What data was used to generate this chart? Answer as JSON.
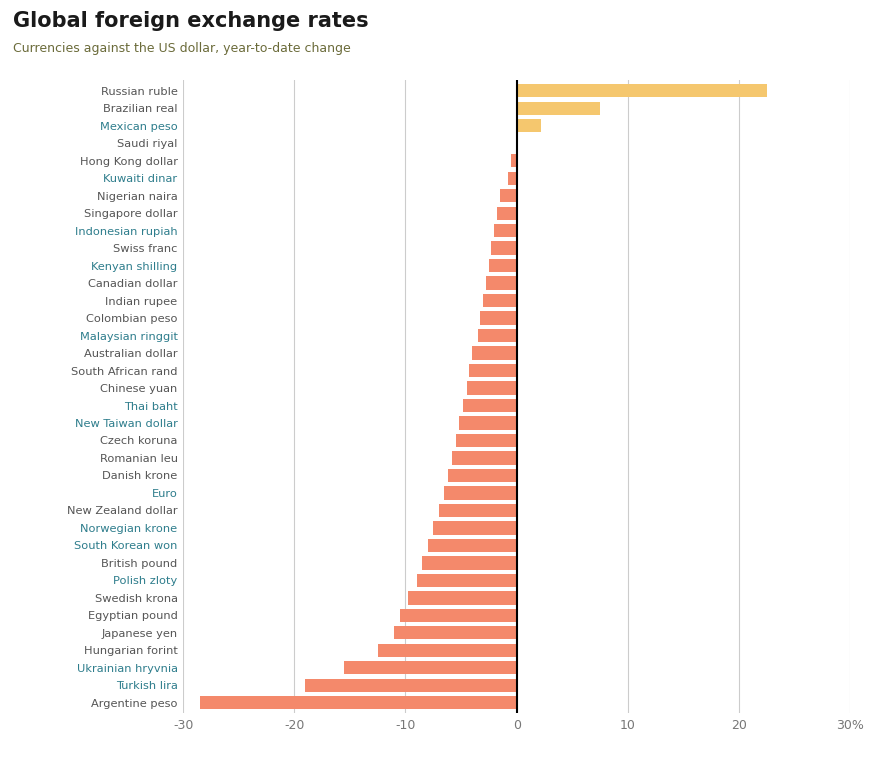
{
  "title": "Global foreign exchange rates",
  "subtitle": "Currencies against the US dollar, year-to-date change",
  "subtitle_color": "#6b6b3a",
  "title_color": "#1a1a1a",
  "currencies": [
    "Russian ruble",
    "Brazilian real",
    "Mexican peso",
    "Saudi riyal",
    "Hong Kong dollar",
    "Kuwaiti dinar",
    "Nigerian naira",
    "Singapore dollar",
    "Indonesian rupiah",
    "Swiss franc",
    "Kenyan shilling",
    "Canadian dollar",
    "Indian rupee",
    "Colombian peso",
    "Malaysian ringgit",
    "Australian dollar",
    "South African rand",
    "Chinese yuan",
    "Thai baht",
    "New Taiwan dollar",
    "Czech koruna",
    "Romanian leu",
    "Danish krone",
    "Euro",
    "New Zealand dollar",
    "Norwegian krone",
    "South Korean won",
    "British pound",
    "Polish zloty",
    "Swedish krona",
    "Egyptian pound",
    "Japanese yen",
    "Hungarian forint",
    "Ukrainian hryvnia",
    "Turkish lira",
    "Argentine peso"
  ],
  "values": [
    22.5,
    7.5,
    2.2,
    0.0,
    -0.5,
    -0.8,
    -1.5,
    -1.8,
    -2.0,
    -2.3,
    -2.5,
    -2.8,
    -3.0,
    -3.3,
    -3.5,
    -4.0,
    -4.3,
    -4.5,
    -4.8,
    -5.2,
    -5.5,
    -5.8,
    -6.2,
    -6.5,
    -7.0,
    -7.5,
    -8.0,
    -8.5,
    -9.0,
    -9.8,
    -10.5,
    -11.0,
    -12.5,
    -15.5,
    -19.0,
    -28.5
  ],
  "label_colors": {
    "Russian ruble": "#555555",
    "Brazilian real": "#555555",
    "Mexican peso": "#2e7d8c",
    "Saudi riyal": "#555555",
    "Hong Kong dollar": "#555555",
    "Kuwaiti dinar": "#2e7d8c",
    "Nigerian naira": "#555555",
    "Singapore dollar": "#555555",
    "Indonesian rupiah": "#2e7d8c",
    "Swiss franc": "#555555",
    "Kenyan shilling": "#2e7d8c",
    "Canadian dollar": "#555555",
    "Indian rupee": "#555555",
    "Colombian peso": "#555555",
    "Malaysian ringgit": "#2e7d8c",
    "Australian dollar": "#555555",
    "South African rand": "#555555",
    "Chinese yuan": "#555555",
    "Thai baht": "#2e7d8c",
    "New Taiwan dollar": "#2e7d8c",
    "Czech koruna": "#555555",
    "Romanian leu": "#555555",
    "Danish krone": "#555555",
    "Euro": "#2e7d8c",
    "New Zealand dollar": "#555555",
    "Norwegian krone": "#2e7d8c",
    "South Korean won": "#2e7d8c",
    "British pound": "#555555",
    "Polish zloty": "#2e7d8c",
    "Swedish krona": "#555555",
    "Egyptian pound": "#555555",
    "Japanese yen": "#555555",
    "Hungarian forint": "#555555",
    "Ukrainian hryvnia": "#2e7d8c",
    "Turkish lira": "#2e7d8c",
    "Argentine peso": "#555555"
  },
  "positive_color": "#f5c76e",
  "negative_color": "#f4896b",
  "xlim": [
    -30,
    30
  ],
  "xticks": [
    -30,
    -20,
    -10,
    0,
    10,
    20,
    30
  ],
  "xtick_labels": [
    "-30",
    "-20",
    "-10",
    "0",
    "10",
    "20",
    "30%"
  ],
  "grid_color": "#cccccc",
  "background_color": "#ffffff"
}
